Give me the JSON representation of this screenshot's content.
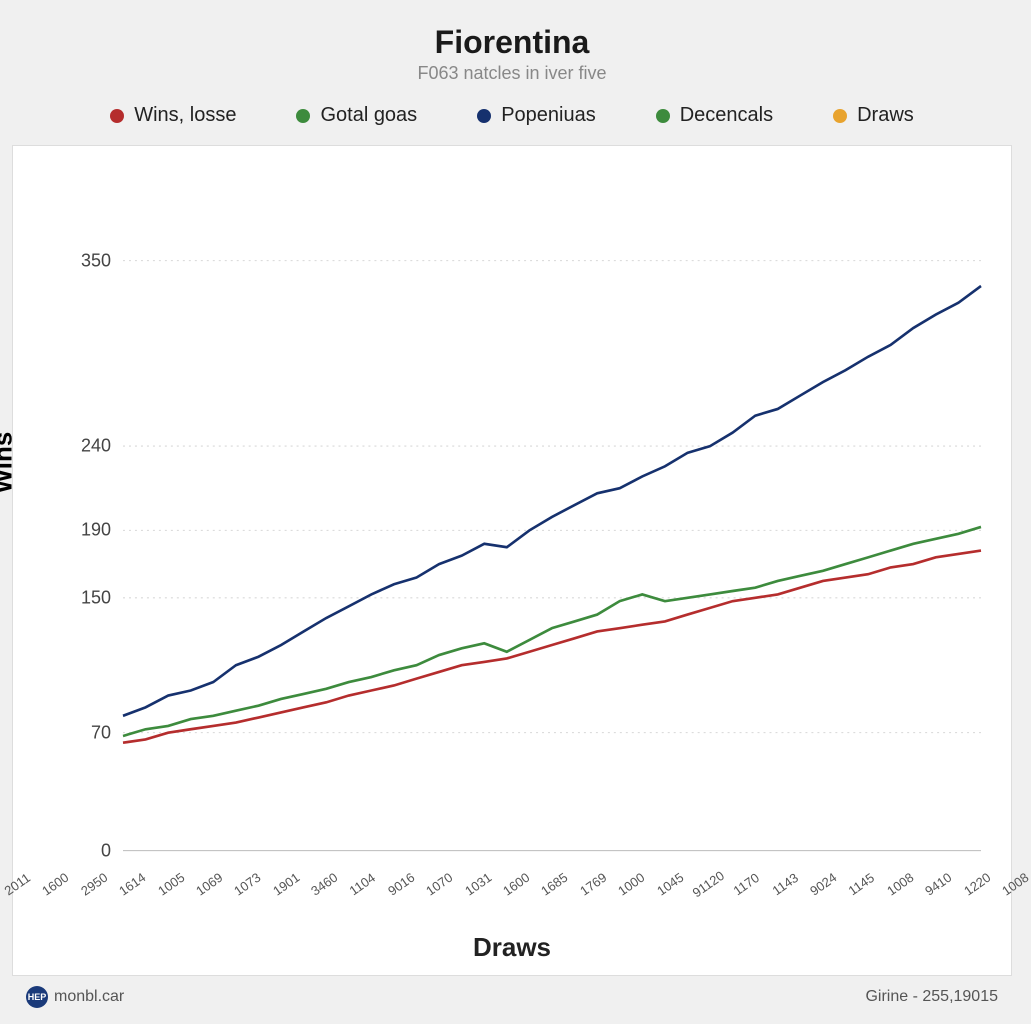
{
  "chart": {
    "type": "line",
    "title": "Fiorentina",
    "subtitle": "F063 natcles in iver five",
    "title_fontsize": 32,
    "subtitle_fontsize": 18,
    "title_color": "#1a1a1a",
    "subtitle_color": "#888888",
    "background_color": "#f0f0f0",
    "plot_background": "#ffffff",
    "plot_border_color": "#dddddd",
    "grid_color": "#d8d8d8",
    "y_axis_label": "Wins",
    "x_axis_label": "Draws",
    "axis_label_fontsize": 26,
    "tick_fontsize": 18,
    "xtick_fontsize": 13,
    "ylim": [
      0,
      380
    ],
    "y_ticks": [
      0,
      70,
      150,
      190,
      240,
      350
    ],
    "x_ticks": [
      "2011",
      "1600",
      "2950",
      "1614",
      "1005",
      "1069",
      "1073",
      "1901",
      "3460",
      "1104",
      "9016",
      "1070",
      "1031",
      "1600",
      "1685",
      "1769",
      "1000",
      "1045",
      "91120",
      "1170",
      "1143",
      "9024",
      "1145",
      "1008",
      "9410",
      "1220",
      "1008"
    ],
    "legend": {
      "fontsize": 20,
      "dot_size": 14,
      "items": [
        {
          "label": "Wins, losse",
          "color": "#b52d2d"
        },
        {
          "label": "Gotal goas",
          "color": "#3d8b3d"
        },
        {
          "label": "Popeniuas",
          "color": "#16316e"
        },
        {
          "label": "Decencals",
          "color": "#3d8b3d"
        },
        {
          "label": "Draws",
          "color": "#e8a32e"
        }
      ]
    },
    "series": [
      {
        "name": "blue",
        "color": "#16316e",
        "line_width": 2.5,
        "data": [
          80,
          85,
          92,
          95,
          100,
          110,
          115,
          122,
          130,
          138,
          145,
          152,
          158,
          162,
          170,
          175,
          182,
          180,
          190,
          198,
          205,
          212,
          215,
          222,
          228,
          236,
          240,
          248,
          258,
          262,
          270,
          278,
          285,
          293,
          300,
          310,
          318,
          325,
          335
        ]
      },
      {
        "name": "green",
        "color": "#3d8b3d",
        "line_width": 2.5,
        "data": [
          68,
          72,
          74,
          78,
          80,
          83,
          86,
          90,
          93,
          96,
          100,
          103,
          107,
          110,
          116,
          120,
          123,
          118,
          125,
          132,
          136,
          140,
          148,
          152,
          148,
          150,
          152,
          154,
          156,
          160,
          163,
          166,
          170,
          174,
          178,
          182,
          185,
          188,
          192
        ]
      },
      {
        "name": "red",
        "color": "#b52d2d",
        "line_width": 2.5,
        "data": [
          64,
          66,
          70,
          72,
          74,
          76,
          79,
          82,
          85,
          88,
          92,
          95,
          98,
          102,
          106,
          110,
          112,
          114,
          118,
          122,
          126,
          130,
          132,
          134,
          136,
          140,
          144,
          148,
          150,
          152,
          156,
          160,
          162,
          164,
          168,
          170,
          174,
          176,
          178
        ]
      }
    ]
  },
  "footer": {
    "badge_label": "HEP",
    "badge_color": "#1a3a7a",
    "left_text": "monbl.car",
    "right_text": "Girine - 255,19015"
  }
}
